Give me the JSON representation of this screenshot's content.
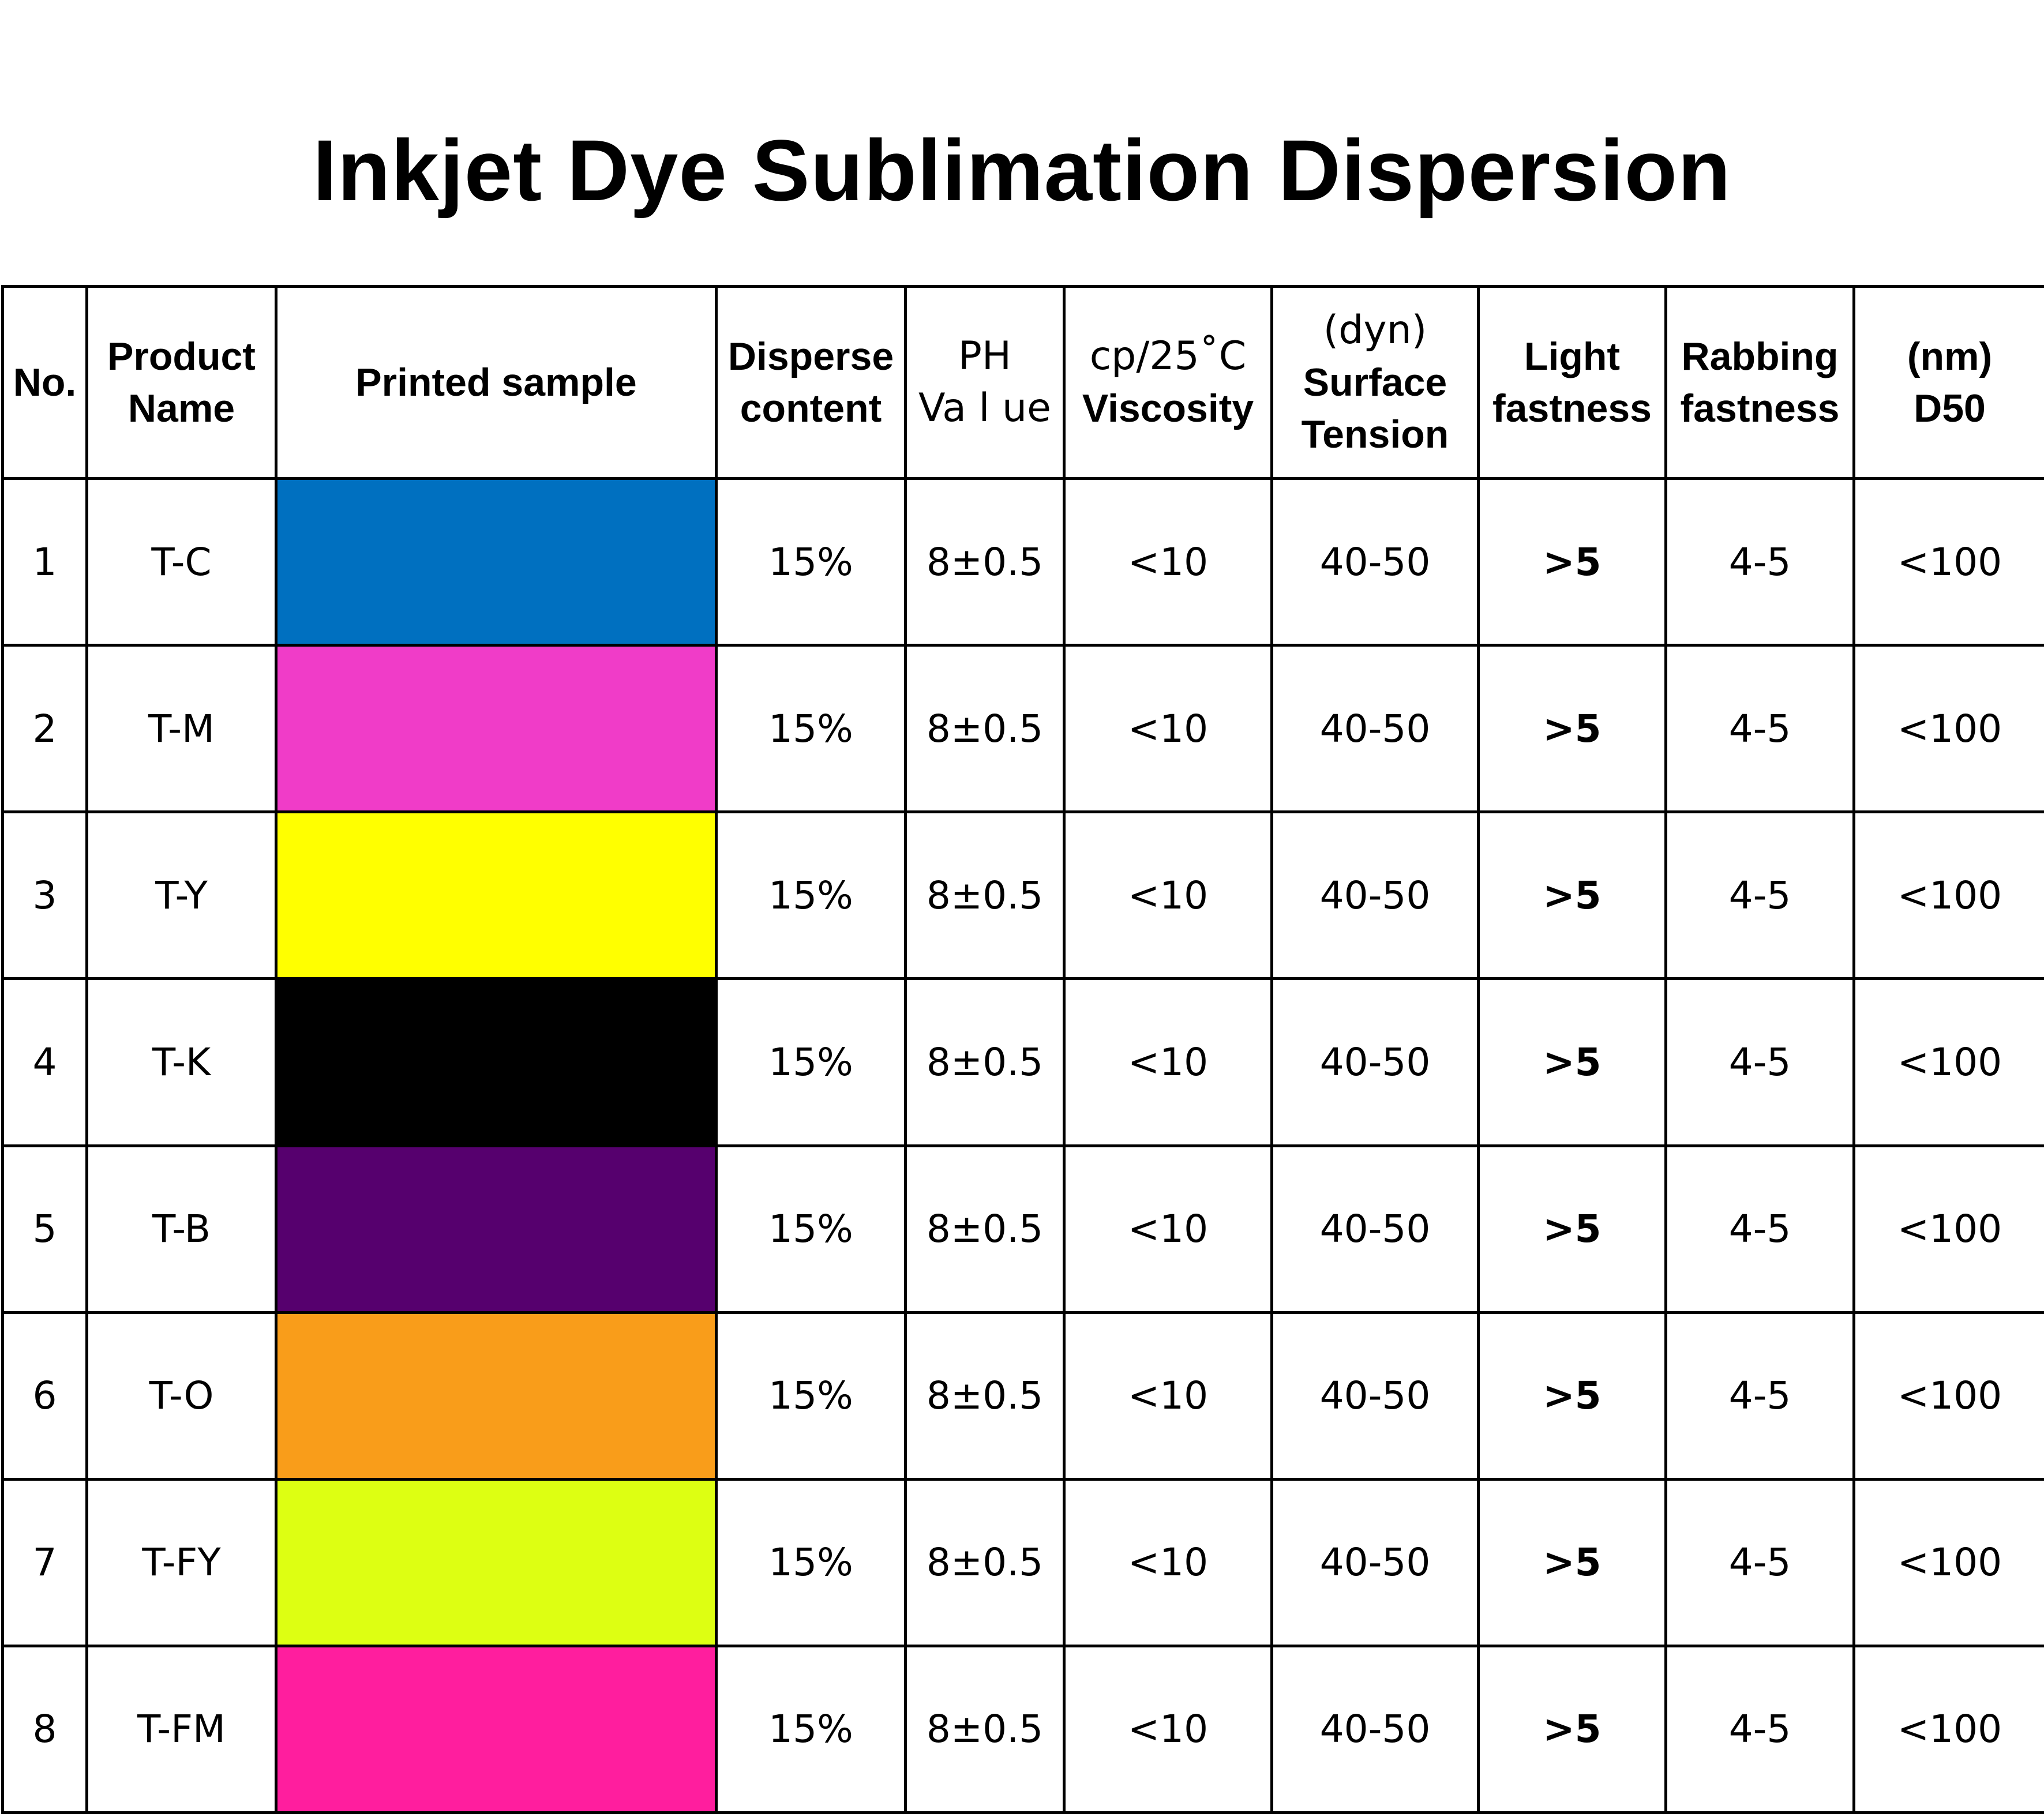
{
  "title": "Inkjet Dye Sublimation Dispersion",
  "table": {
    "headers": {
      "no": [
        "No."
      ],
      "product_name": [
        "Product",
        "Name"
      ],
      "printed_sample": [
        "Printed sample"
      ],
      "disperse_content": [
        "Disperse",
        "content"
      ],
      "ph_value": [
        "PH",
        "Va l ue"
      ],
      "viscosity": [
        "cp/25˚C",
        "Viscosity"
      ],
      "surface_tension": [
        "(dyn)",
        "Surface",
        "Tension"
      ],
      "light_fastness": [
        "Light",
        "fastness"
      ],
      "rabbing_fastness": [
        "Rabbing",
        "fastness"
      ],
      "d50": [
        "(nm)",
        "D50"
      ]
    },
    "rows": [
      {
        "no": "1",
        "product_name": "T-C",
        "sample_color": "#0070C0",
        "disperse_content": "15%",
        "ph_value": "8±0.5",
        "viscosity": "<10",
        "surface_tension": "40-50",
        "light_fastness": ">5",
        "rabbing_fastness": "4-5",
        "d50": "<100"
      },
      {
        "no": "2",
        "product_name": "T-M",
        "sample_color": "#F03CC8",
        "disperse_content": "15%",
        "ph_value": "8±0.5",
        "viscosity": "<10",
        "surface_tension": "40-50",
        "light_fastness": ">5",
        "rabbing_fastness": "4-5",
        "d50": "<100"
      },
      {
        "no": "3",
        "product_name": "T-Y",
        "sample_color": "#FFFF00",
        "disperse_content": "15%",
        "ph_value": "8±0.5",
        "viscosity": "<10",
        "surface_tension": "40-50",
        "light_fastness": ">5",
        "rabbing_fastness": "4-5",
        "d50": "<100"
      },
      {
        "no": "4",
        "product_name": "T-K",
        "sample_color": "#000000",
        "disperse_content": "15%",
        "ph_value": "8±0.5",
        "viscosity": "<10",
        "surface_tension": "40-50",
        "light_fastness": ">5",
        "rabbing_fastness": "4-5",
        "d50": "<100"
      },
      {
        "no": "5",
        "product_name": "T-B",
        "sample_color": "#56006E",
        "disperse_content": "15%",
        "ph_value": "8±0.5",
        "viscosity": "<10",
        "surface_tension": "40-50",
        "light_fastness": ">5",
        "rabbing_fastness": "4-5",
        "d50": "<100"
      },
      {
        "no": "6",
        "product_name": "T-O",
        "sample_color": "#F99D1A",
        "disperse_content": "15%",
        "ph_value": "8±0.5",
        "viscosity": "<10",
        "surface_tension": "40-50",
        "light_fastness": ">5",
        "rabbing_fastness": "4-5",
        "d50": "<100"
      },
      {
        "no": "7",
        "product_name": "T-FY",
        "sample_color": "#DDFF12",
        "disperse_content": "15%",
        "ph_value": "8±0.5",
        "viscosity": "<10",
        "surface_tension": "40-50",
        "light_fastness": ">5",
        "rabbing_fastness": "4-5",
        "d50": "<100"
      },
      {
        "no": "8",
        "product_name": "T-FM",
        "sample_color": "#FF1E9E",
        "disperse_content": "15%",
        "ph_value": "8±0.5",
        "viscosity": "<10",
        "surface_tension": "40-50",
        "light_fastness": ">5",
        "rabbing_fastness": "4-5",
        "d50": "<100"
      }
    ]
  }
}
